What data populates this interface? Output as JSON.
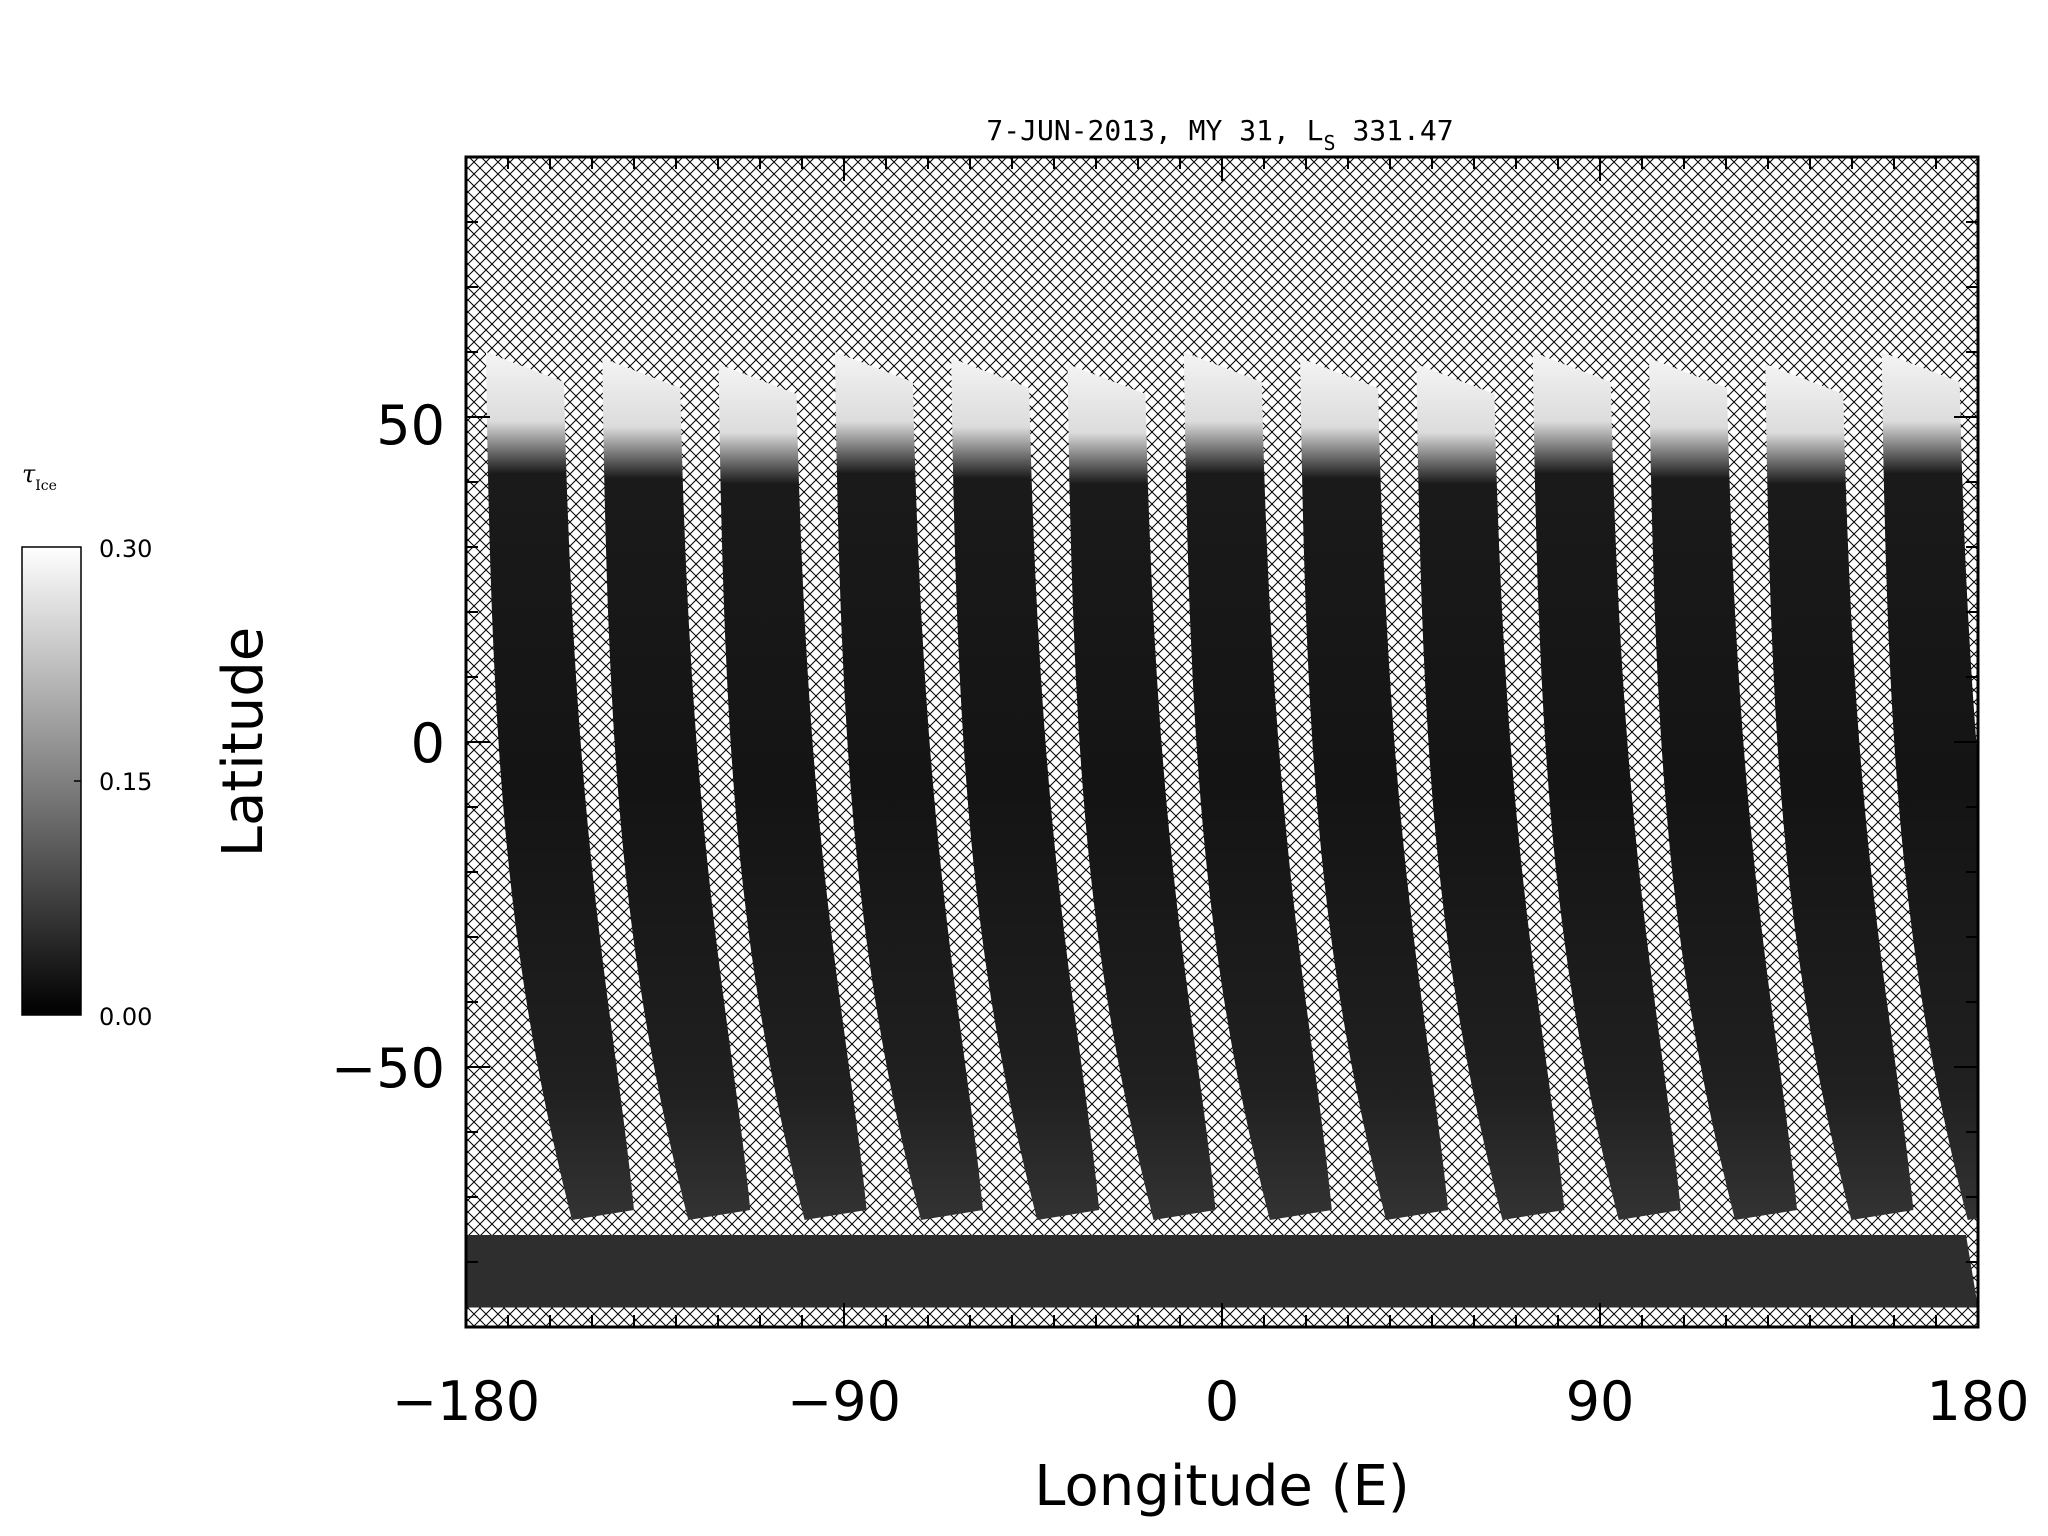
{
  "figure": {
    "title_prefix": "7-JUN-2013, MY 31,  L",
    "title_subscript": "S",
    "title_suffix": " 331.47"
  },
  "colorbar": {
    "label_symbol": "τ",
    "label_subscript": "Ice",
    "min": 0.0,
    "max": 0.3,
    "ticks": [
      "0.00",
      "0.15",
      "0.30"
    ],
    "colors": {
      "low": "#000000",
      "high": "#ffffff"
    }
  },
  "map": {
    "xlabel": "Longitude (E)",
    "ylabel": "Latitude",
    "xlim": [
      -180,
      180
    ],
    "ylim": [
      -90,
      90
    ],
    "xticks": [
      "−180",
      "−90",
      "0",
      "90",
      "180"
    ],
    "yticks": [
      "50",
      "0",
      "−50"
    ],
    "no_data_pattern": "crosshatch",
    "swath_count": 13,
    "colors": {
      "hatch": "#000000",
      "background": "#ffffff",
      "frame": "#000000"
    }
  }
}
